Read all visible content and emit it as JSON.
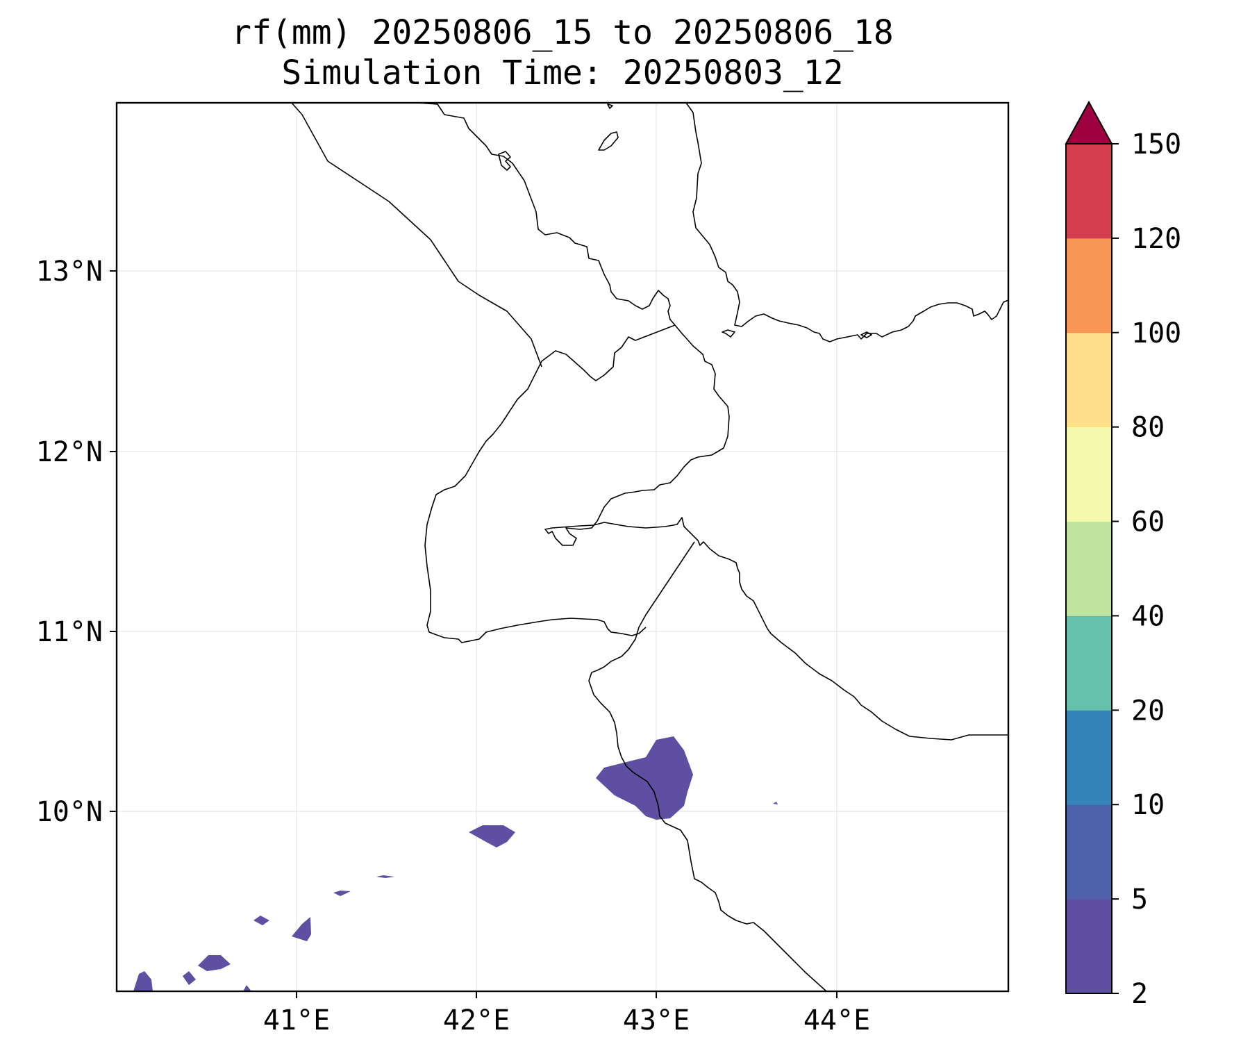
{
  "title": {
    "line1": "rf(mm) 20250806_15 to 20250806_18",
    "line2": "Simulation Time: 20250803_12"
  },
  "map": {
    "projection": "PlateCarree",
    "lon_range": [
      40.0,
      45.0
    ],
    "lat_range": [
      9.0,
      13.95
    ],
    "grid": true,
    "lon_ticks": [
      {
        "value": 41,
        "label": "41°E"
      },
      {
        "value": 42,
        "label": "42°E"
      },
      {
        "value": 43,
        "label": "43°E"
      },
      {
        "value": 44,
        "label": "44°E"
      }
    ],
    "lat_ticks": [
      {
        "value": 10,
        "label": "10°N"
      },
      {
        "value": 11,
        "label": "11°N"
      },
      {
        "value": 12,
        "label": "12°N"
      },
      {
        "value": 13,
        "label": "13°N"
      }
    ]
  },
  "colorbar": {
    "levels": [
      2,
      5,
      10,
      20,
      40,
      60,
      80,
      100,
      120,
      150
    ],
    "labels": [
      "2",
      "5",
      "10",
      "20",
      "40",
      "60",
      "80",
      "100",
      "120",
      "150"
    ],
    "colors": [
      "#5e4fa2",
      "#4f61aa",
      "#3682ba",
      "#65c0ae",
      "#bee4a0",
      "#f4faad",
      "#fee08b",
      "#f99655",
      "#d53e4f",
      "#9e0142"
    ],
    "extend": "max"
  },
  "chart_data": {
    "type": "heatmap",
    "title": "rf(mm) 20250806_15 to 20250806_18\nSimulation Time: 20250803_12",
    "xlabel": "",
    "ylabel": "",
    "xlim": [
      40.0,
      45.0
    ],
    "ylim": [
      9.0,
      13.95
    ],
    "precip_regions_2_to_5mm": [
      {
        "name": "",
        "center": [
          42.95,
          10.15
        ]
      },
      {
        "name": "",
        "center": [
          42.1,
          9.85
        ]
      },
      {
        "name": "",
        "center": [
          40.55,
          9.15
        ]
      },
      {
        "name": "",
        "center": [
          40.05,
          9.0
        ]
      },
      {
        "name": "",
        "center": [
          41.05,
          9.25
        ]
      }
    ]
  }
}
